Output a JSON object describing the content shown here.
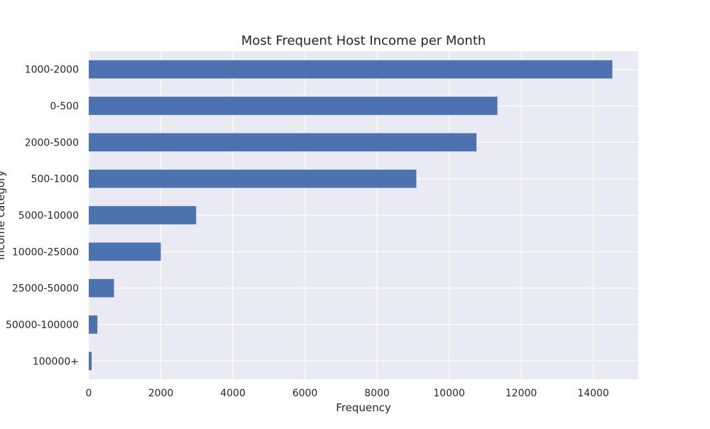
{
  "chart_data": {
    "type": "bar",
    "orientation": "horizontal",
    "title": "Most Frequent Host Income per Month",
    "xlabel": "Frequency",
    "ylabel": "Income category",
    "categories": [
      "1000-2000",
      "0-500",
      "2000-5000",
      "500-1000",
      "5000-10000",
      "10000-25000",
      "25000-50000",
      "50000-100000",
      "100000+"
    ],
    "values": [
      14530,
      11340,
      10760,
      9090,
      2980,
      2000,
      700,
      240,
      80
    ],
    "xlim": [
      0,
      15250
    ],
    "xticks": [
      0,
      2000,
      4000,
      6000,
      8000,
      10000,
      12000,
      14000
    ],
    "grid": true,
    "bar_color": "#4c72b0",
    "background_color": "#eaeaf2",
    "grid_color": "#ffffff"
  }
}
